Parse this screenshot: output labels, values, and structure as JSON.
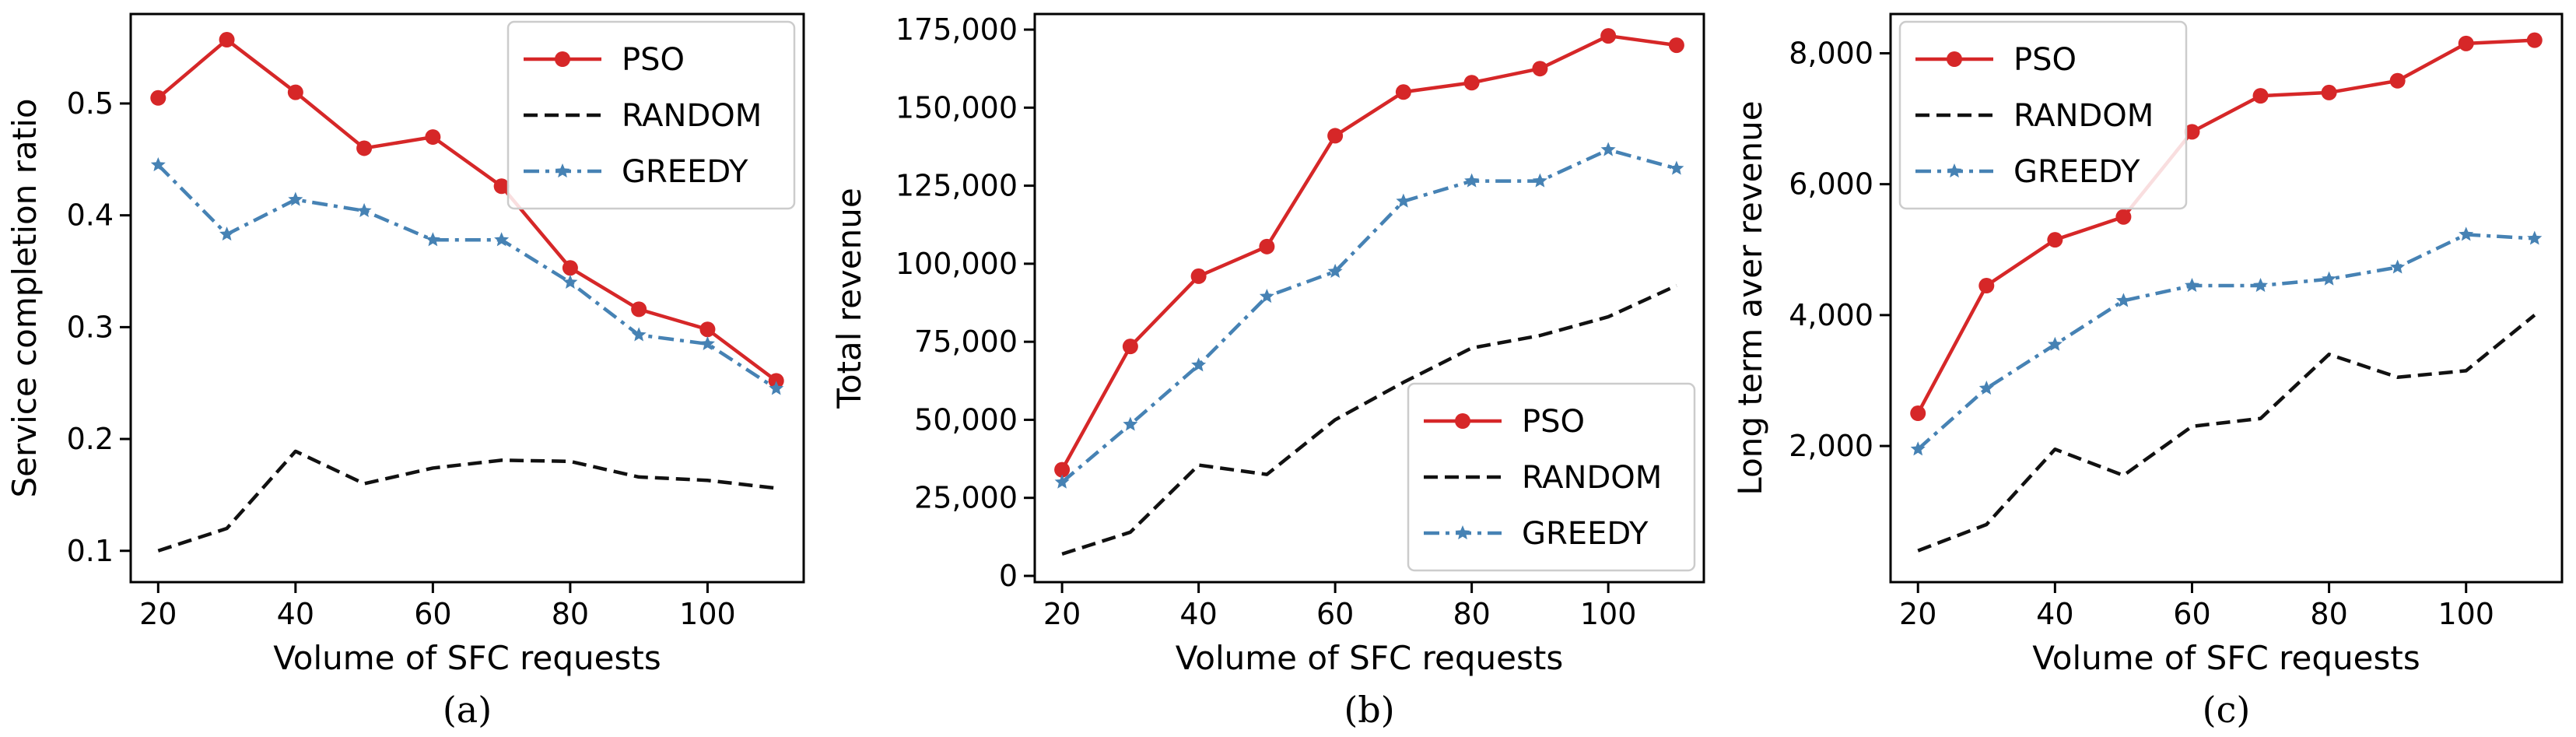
{
  "chart_data": [
    {
      "type": "line",
      "caption": "(a)",
      "xlabel": "Volume of SFC requests",
      "ylabel": "Service completion ratio",
      "x": [
        20,
        30,
        40,
        50,
        60,
        70,
        80,
        90,
        100,
        110
      ],
      "xlim": [
        16,
        114
      ],
      "ylim": [
        0.072,
        0.58
      ],
      "xticks": [
        20,
        40,
        60,
        80,
        100
      ],
      "xtick_labels": [
        "20",
        "40",
        "60",
        "80",
        "100"
      ],
      "yticks": [
        0.1,
        0.2,
        0.3,
        0.4,
        0.5
      ],
      "ytick_labels": [
        "0.1",
        "0.2",
        "0.3",
        "0.4",
        "0.5"
      ],
      "legend_position": "top-right",
      "series": [
        {
          "name": "PSO",
          "color": "#d62728",
          "style": "solid",
          "marker": "circle",
          "values": [
            0.505,
            0.557,
            0.51,
            0.46,
            0.47,
            0.426,
            0.353,
            0.316,
            0.298,
            0.252
          ]
        },
        {
          "name": "RANDOM",
          "color": "#111111",
          "style": "dashed",
          "marker": "none",
          "values": [
            0.1,
            0.12,
            0.189,
            0.16,
            0.174,
            0.181,
            0.18,
            0.166,
            0.163,
            0.156
          ]
        },
        {
          "name": "GREEDY",
          "color": "#4682b4",
          "style": "dashdot",
          "marker": "star",
          "values": [
            0.445,
            0.383,
            0.414,
            0.404,
            0.378,
            0.378,
            0.34,
            0.293,
            0.285,
            0.245
          ]
        }
      ]
    },
    {
      "type": "line",
      "caption": "(b)",
      "xlabel": "Volume of SFC requests",
      "ylabel": "Total revenue",
      "x": [
        20,
        30,
        40,
        50,
        60,
        70,
        80,
        90,
        100,
        110
      ],
      "xlim": [
        16,
        114
      ],
      "ylim": [
        -2000,
        180000
      ],
      "xticks": [
        20,
        40,
        60,
        80,
        100
      ],
      "xtick_labels": [
        "20",
        "40",
        "60",
        "80",
        "100"
      ],
      "yticks": [
        0,
        25000,
        50000,
        75000,
        100000,
        125000,
        150000,
        175000
      ],
      "ytick_labels": [
        "0",
        "25,000",
        "50,000",
        "75,000",
        "100,000",
        "125,000",
        "150,000",
        "175,000"
      ],
      "legend_position": "bottom-right",
      "series": [
        {
          "name": "PSO",
          "color": "#d62728",
          "style": "solid",
          "marker": "circle",
          "values": [
            34000,
            73500,
            96000,
            105500,
            141000,
            155000,
            158000,
            162500,
            173000,
            170000
          ]
        },
        {
          "name": "RANDOM",
          "color": "#111111",
          "style": "dashed",
          "marker": "none",
          "values": [
            7000,
            14000,
            35500,
            32500,
            50000,
            62000,
            73000,
            77000,
            83000,
            93000
          ]
        },
        {
          "name": "GREEDY",
          "color": "#4682b4",
          "style": "dashdot",
          "marker": "star",
          "values": [
            30000,
            48500,
            67500,
            89500,
            97500,
            120000,
            126500,
            126500,
            136500,
            130500
          ]
        }
      ]
    },
    {
      "type": "line",
      "caption": "(c)",
      "xlabel": "Volume of SFC requests",
      "ylabel": "Long term aver revenue",
      "x": [
        20,
        30,
        40,
        50,
        60,
        70,
        80,
        90,
        100,
        110
      ],
      "xlim": [
        16,
        114
      ],
      "ylim": [
        -80,
        8600
      ],
      "xticks": [
        20,
        40,
        60,
        80,
        100
      ],
      "xtick_labels": [
        "20",
        "40",
        "60",
        "80",
        "100"
      ],
      "yticks": [
        2000,
        4000,
        6000,
        8000
      ],
      "ytick_labels": [
        "2,000",
        "4,000",
        "6,000",
        "8,000"
      ],
      "legend_position": "top-left",
      "series": [
        {
          "name": "PSO",
          "color": "#d62728",
          "style": "solid",
          "marker": "circle",
          "values": [
            2500,
            4450,
            5150,
            5500,
            6800,
            7350,
            7400,
            7580,
            8150,
            8200
          ]
        },
        {
          "name": "RANDOM",
          "color": "#111111",
          "style": "dashed",
          "marker": "none",
          "values": [
            400,
            800,
            1950,
            1550,
            2300,
            2420,
            3400,
            3050,
            3150,
            4000
          ]
        },
        {
          "name": "GREEDY",
          "color": "#4682b4",
          "style": "dashdot",
          "marker": "star",
          "values": [
            1950,
            2880,
            3550,
            4220,
            4450,
            4450,
            4550,
            4730,
            5230,
            5170
          ]
        }
      ]
    }
  ]
}
